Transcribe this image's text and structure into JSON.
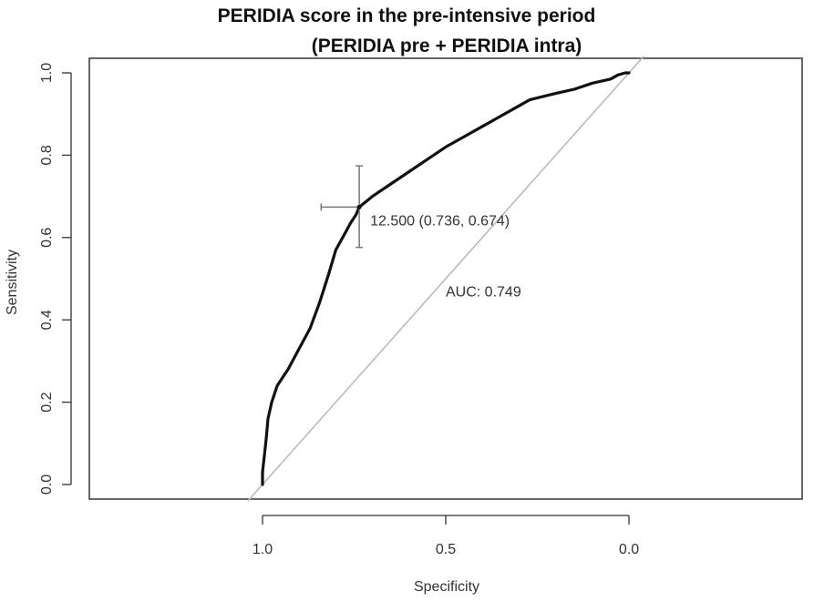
{
  "chart_data": {
    "type": "line",
    "title": "PERIDIA score in the pre-intensive period",
    "subtitle": "(PERIDIA pre + PERIDIA intra)",
    "xlabel": "Specificity",
    "ylabel": "Sensitivity",
    "xlim": [
      1.45,
      -0.45
    ],
    "ylim": [
      0.0,
      1.0
    ],
    "x_reversed": true,
    "x_ticks": [
      1.0,
      0.5,
      0.0
    ],
    "x_tick_labels": [
      "1.0",
      "0.5",
      "0.0"
    ],
    "y_ticks": [
      0.0,
      0.2,
      0.4,
      0.6,
      0.8,
      1.0
    ],
    "y_tick_labels": [
      "0.0",
      "0.2",
      "0.4",
      "0.6",
      "0.8",
      "1.0"
    ],
    "grid": false,
    "series": [
      {
        "color": "#111111",
        "x": [
          1.0,
          1.0,
          0.995,
          0.99,
          0.985,
          0.975,
          0.96,
          0.93,
          0.9,
          0.87,
          0.845,
          0.82,
          0.8,
          0.775,
          0.76,
          0.745,
          0.736,
          0.7,
          0.65,
          0.6,
          0.55,
          0.5,
          0.45,
          0.4,
          0.35,
          0.3,
          0.27,
          0.2,
          0.15,
          0.1,
          0.05,
          0.03,
          0.01,
          0.0
        ],
        "y": [
          0.0,
          0.03,
          0.07,
          0.11,
          0.16,
          0.2,
          0.24,
          0.28,
          0.33,
          0.38,
          0.44,
          0.51,
          0.57,
          0.61,
          0.635,
          0.655,
          0.674,
          0.7,
          0.73,
          0.76,
          0.79,
          0.82,
          0.845,
          0.87,
          0.895,
          0.92,
          0.935,
          0.95,
          0.96,
          0.975,
          0.985,
          0.995,
          1.0,
          1.0
        ]
      }
    ],
    "reference_line": {
      "x": [
        1.0,
        0.0
      ],
      "y": [
        0.0,
        1.0
      ],
      "color": "#bbbbbb"
    },
    "threshold_point": {
      "x": 0.736,
      "y": 0.674,
      "x_ci": [
        0.84,
        0.736
      ],
      "y_ci": [
        0.576,
        0.774
      ],
      "label": "12.500 (0.736, 0.674)"
    },
    "auc_label": "AUC: 0.749",
    "auc_label_pos": {
      "x": 0.5,
      "y": 0.47
    }
  }
}
